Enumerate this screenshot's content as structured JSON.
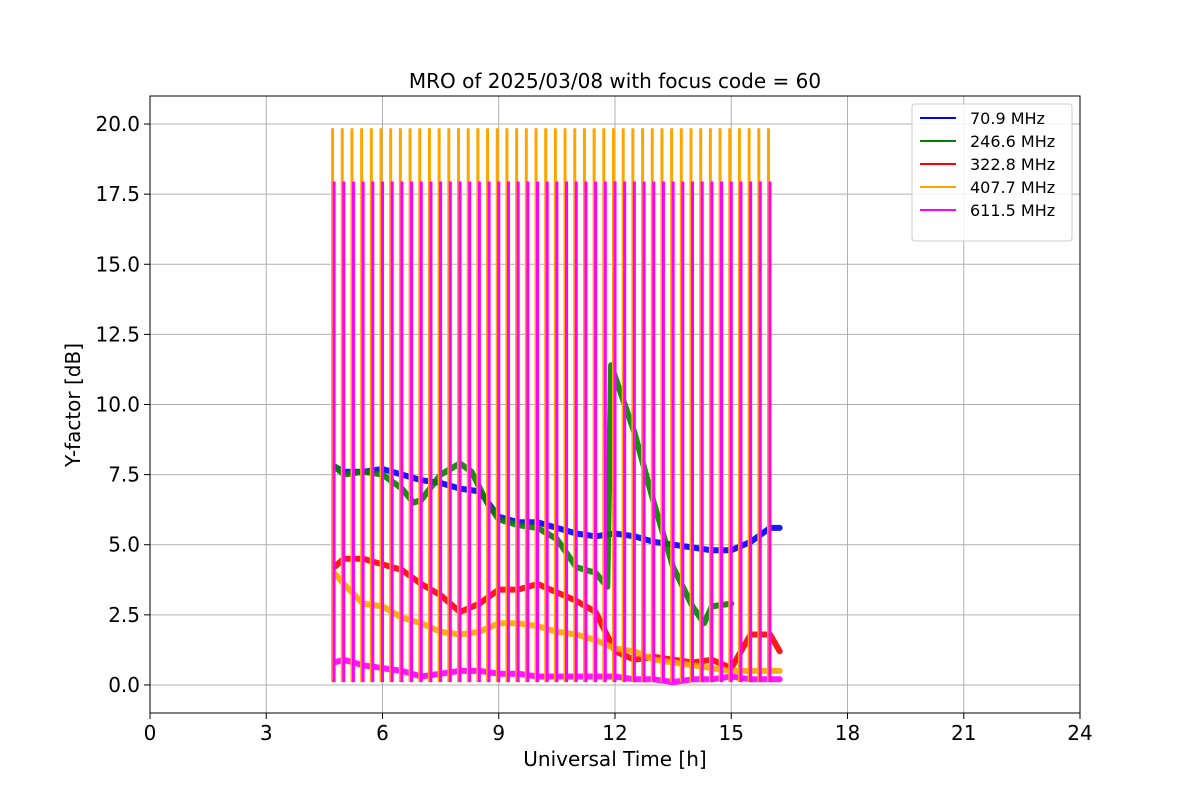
{
  "chart_data": {
    "type": "line",
    "title": "MRO of 2025/03/08 with focus code = 60",
    "xlabel": "Universal Time [h]",
    "ylabel": "Y-factor [dB]",
    "xlim": [
      0,
      24
    ],
    "ylim": [
      -1.0,
      21.0
    ],
    "xticks": [
      0,
      3,
      6,
      9,
      12,
      15,
      18,
      21,
      24
    ],
    "xtick_labels": [
      "0",
      "3",
      "6",
      "9",
      "12",
      "15",
      "18",
      "21",
      "24"
    ],
    "yticks": [
      0,
      2.5,
      5,
      7.5,
      10,
      12.5,
      15,
      17.5,
      20
    ],
    "ytick_labels": [
      "0.0",
      "2.5",
      "5.0",
      "7.5",
      "10.0",
      "12.5",
      "15.0",
      "17.5",
      "20.0"
    ],
    "grid": true,
    "legend_position": "top-right",
    "calibration": {
      "start_h": 4.75,
      "end_h": 16.05,
      "interval_h": 0.25,
      "peaks": [
        {
          "series": "407.7 MHz",
          "value": 19.85
        },
        {
          "series": "611.5 MHz",
          "value": 17.95
        }
      ]
    },
    "series": [
      {
        "name": " 70.9 MHz",
        "color": "#0000ff",
        "x": [
          4.75,
          5.0,
          5.5,
          6.0,
          6.5,
          7.0,
          7.5,
          8.0,
          8.5,
          9.0,
          9.5,
          10.0,
          10.5,
          11.0,
          11.5,
          12.0,
          12.5,
          13.0,
          13.5,
          14.0,
          14.5,
          15.0,
          15.5,
          16.0,
          16.25
        ],
        "y": [
          7.8,
          7.6,
          7.6,
          7.7,
          7.5,
          7.3,
          7.2,
          7.0,
          6.9,
          6.0,
          5.8,
          5.8,
          5.6,
          5.4,
          5.3,
          5.4,
          5.3,
          5.1,
          5.0,
          4.9,
          4.8,
          4.8,
          5.1,
          5.6,
          5.6
        ]
      },
      {
        "name": " 246.6 MHz",
        "color": "#008000",
        "x": [
          4.75,
          5.0,
          5.5,
          6.0,
          6.5,
          6.8,
          7.0,
          7.5,
          8.0,
          8.3,
          8.7,
          9.0,
          9.5,
          10.0,
          10.5,
          11.0,
          11.5,
          11.8,
          11.9,
          12.0,
          12.5,
          13.0,
          13.5,
          14.0,
          14.3,
          14.5,
          15.0
        ],
        "y": [
          7.8,
          7.5,
          7.6,
          7.5,
          7.0,
          6.5,
          6.6,
          7.5,
          7.9,
          7.6,
          6.5,
          5.9,
          5.7,
          5.6,
          5.2,
          4.2,
          4.0,
          3.5,
          11.4,
          11.0,
          9.0,
          6.5,
          4.2,
          2.8,
          2.2,
          2.8,
          2.9
        ]
      },
      {
        "name": " 322.8 MHz",
        "color": "#ff0000",
        "x": [
          4.75,
          5.0,
          5.5,
          6.0,
          6.5,
          7.0,
          7.5,
          8.0,
          8.5,
          9.0,
          9.5,
          10.0,
          10.5,
          11.0,
          11.5,
          12.0,
          12.5,
          13.0,
          13.5,
          14.0,
          14.5,
          15.0,
          15.5,
          16.0,
          16.25
        ],
        "y": [
          4.2,
          4.5,
          4.5,
          4.3,
          4.1,
          3.6,
          3.2,
          2.6,
          2.9,
          3.4,
          3.4,
          3.6,
          3.3,
          3.0,
          2.6,
          1.2,
          0.9,
          1.0,
          0.9,
          0.8,
          0.9,
          0.6,
          1.8,
          1.8,
          1.2
        ]
      },
      {
        "name": " 407.7 MHz",
        "color": "#ffa500",
        "x": [
          4.75,
          5.0,
          5.5,
          6.0,
          6.5,
          7.0,
          7.5,
          8.0,
          8.5,
          9.0,
          9.5,
          10.0,
          10.5,
          11.0,
          11.5,
          12.0,
          12.5,
          13.0,
          13.5,
          14.0,
          14.5,
          15.0,
          15.5,
          16.0,
          16.25
        ],
        "y": [
          4.0,
          3.6,
          2.9,
          2.8,
          2.4,
          2.2,
          1.9,
          1.8,
          1.9,
          2.2,
          2.2,
          2.1,
          1.9,
          1.8,
          1.6,
          1.3,
          1.2,
          0.9,
          0.8,
          0.7,
          0.6,
          0.5,
          0.5,
          0.5,
          0.5
        ]
      },
      {
        "name": " 611.5 MHz",
        "color": "#ff00ff",
        "x": [
          4.75,
          5.0,
          5.5,
          6.0,
          6.5,
          7.0,
          7.5,
          8.0,
          8.5,
          9.0,
          9.5,
          10.0,
          10.5,
          11.0,
          11.5,
          12.0,
          12.5,
          13.0,
          13.5,
          14.0,
          14.5,
          15.0,
          15.5,
          16.0,
          16.25
        ],
        "y": [
          0.8,
          0.9,
          0.7,
          0.6,
          0.5,
          0.3,
          0.4,
          0.5,
          0.5,
          0.4,
          0.4,
          0.3,
          0.3,
          0.3,
          0.3,
          0.3,
          0.2,
          0.2,
          0.1,
          0.2,
          0.2,
          0.3,
          0.2,
          0.2,
          0.2
        ]
      }
    ]
  }
}
